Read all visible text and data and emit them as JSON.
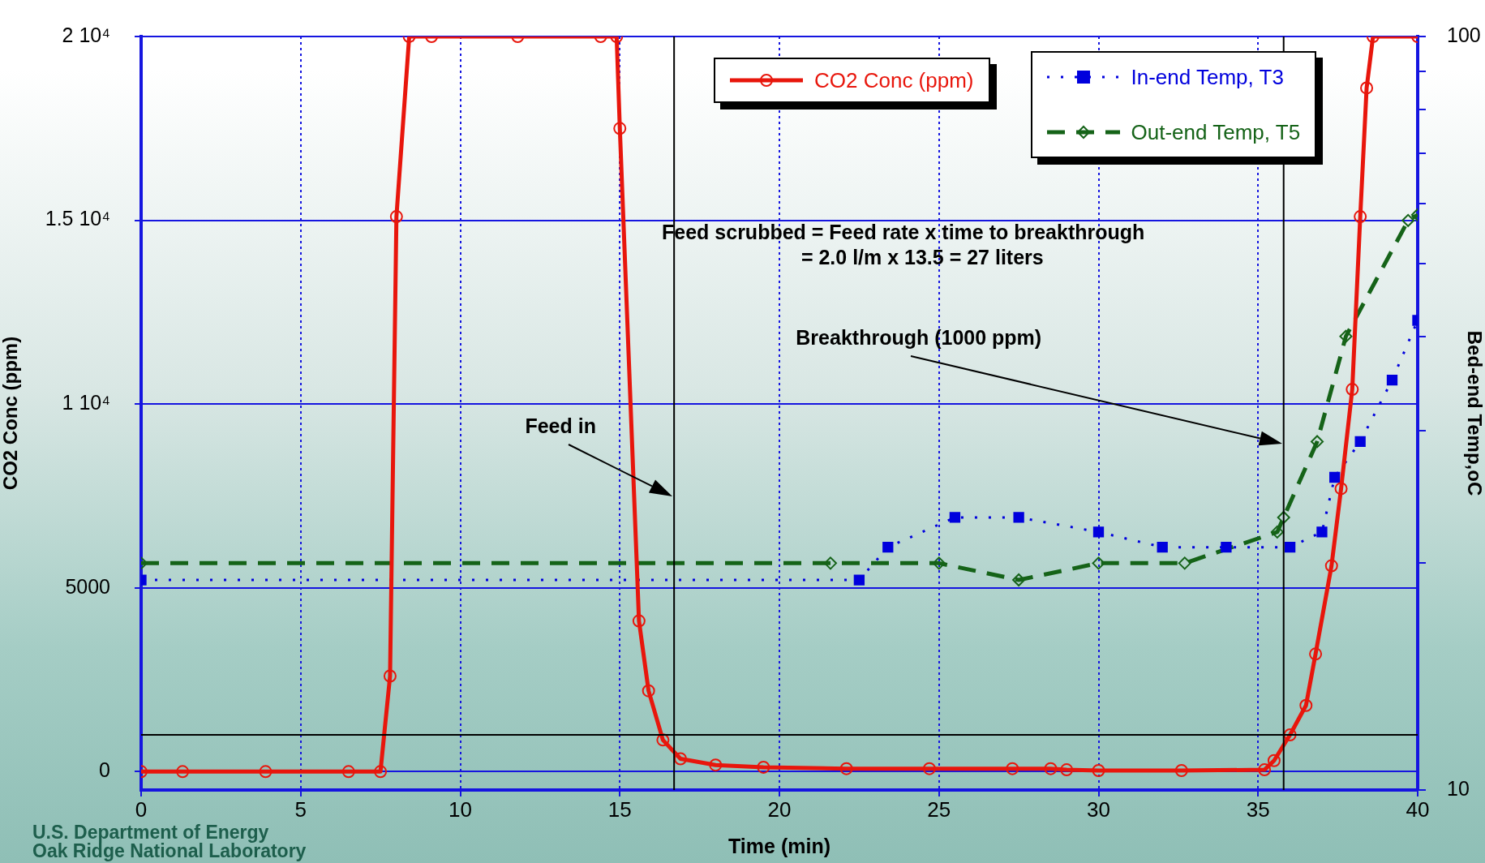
{
  "chart_data": {
    "type": "line",
    "xlabel": "Time (min)",
    "ylabel": "CO2 Conc (ppm)",
    "y2label": "Bed-end Temp,oC",
    "xlim": [
      0,
      40
    ],
    "xticks": [
      0,
      5,
      10,
      15,
      20,
      25,
      30,
      35,
      40
    ],
    "ylim": [
      -500,
      20000
    ],
    "yticks": [
      0,
      5000,
      {
        "value": 10000,
        "label": "1 10⁴"
      },
      {
        "value": 15000,
        "label": "1.5 10⁴"
      },
      {
        "value": 20000,
        "label": "2 10⁴"
      }
    ],
    "y2lim": [
      10,
      100
    ],
    "y2ticks": [
      10,
      {
        "value": 20,
        "label": null
      },
      {
        "value": 30,
        "label": null
      },
      {
        "value": 40,
        "label": null
      },
      {
        "value": 50,
        "label": null
      },
      {
        "value": 60,
        "label": null
      },
      {
        "value": 70,
        "label": null
      },
      {
        "value": 80,
        "label": null
      },
      {
        "value": 90,
        "label": null
      },
      100
    ],
    "log": "y2",
    "grid": true,
    "legend": "top right",
    "series": [
      {
        "name": "CO2 Conc (ppm)",
        "color": "#e8160c",
        "marker": "circle",
        "line_style": "solid",
        "x": [
          0,
          1.3,
          3.9,
          6.5,
          7.5,
          7.8,
          8.0,
          8.4,
          9.1,
          11.8,
          14.4,
          14.9,
          15.0,
          15.6,
          15.9,
          16.35,
          16.9,
          18.0,
          19.5,
          22.1,
          24.7,
          27.3,
          28.5,
          29.0,
          30.0,
          32.6,
          35.2,
          35.5,
          36.0,
          36.5,
          36.8,
          37.3,
          37.6,
          37.95,
          38.2,
          38.4,
          38.6,
          40
        ],
        "values": [
          0,
          0,
          0,
          0,
          0,
          2600,
          15100,
          20000,
          20000,
          20000,
          20000,
          20000,
          17500,
          4100,
          2200,
          860,
          350,
          180,
          120,
          80,
          80,
          80,
          80,
          50,
          30,
          30,
          50,
          300,
          1000,
          1800,
          3200,
          5600,
          7700,
          10400,
          15100,
          18600,
          20000,
          20000
        ]
      },
      {
        "name": "In-end Temp, T3",
        "color": "#0000dd",
        "marker": "square",
        "line_style": "dotted",
        "axis": "y2",
        "x": [
          0,
          22.5,
          23.4,
          25.5,
          27.5,
          30,
          32,
          34,
          36,
          37,
          37.4,
          38.2,
          39.2,
          40
        ],
        "values": [
          19,
          19,
          21,
          23,
          23,
          22,
          21,
          21,
          21,
          22,
          26,
          29,
          35,
          42
        ]
      },
      {
        "name": "Out-end Temp, T5",
        "color": "#156318",
        "marker": "diamond",
        "line_style": "dashed",
        "axis": "y2",
        "x": [
          0,
          21.6,
          25,
          27.5,
          30,
          32.7,
          35.6,
          35.8,
          36.85,
          37.75,
          39.7,
          40
        ],
        "values": [
          20,
          20,
          20,
          19,
          20,
          20,
          22,
          23,
          29,
          40,
          57,
          58
        ]
      }
    ],
    "ref_lines": [
      {
        "axis": "y",
        "value": 1000,
        "color": "#000000"
      },
      {
        "axis": "x",
        "value": 16.7,
        "label": "Feed in",
        "color": "#000000"
      },
      {
        "axis": "x",
        "value": 35.8,
        "label": "Breakthrough (1000 ppm)",
        "color": "#000000"
      }
    ],
    "annotations": [
      "Feed scrubbed = Feed rate x time to breakthrough",
      "= 2.0 l/m x 13.5 = 27 liters",
      "U.S. Department of Energy",
      "Oak Ridge National Laboratory"
    ]
  }
}
